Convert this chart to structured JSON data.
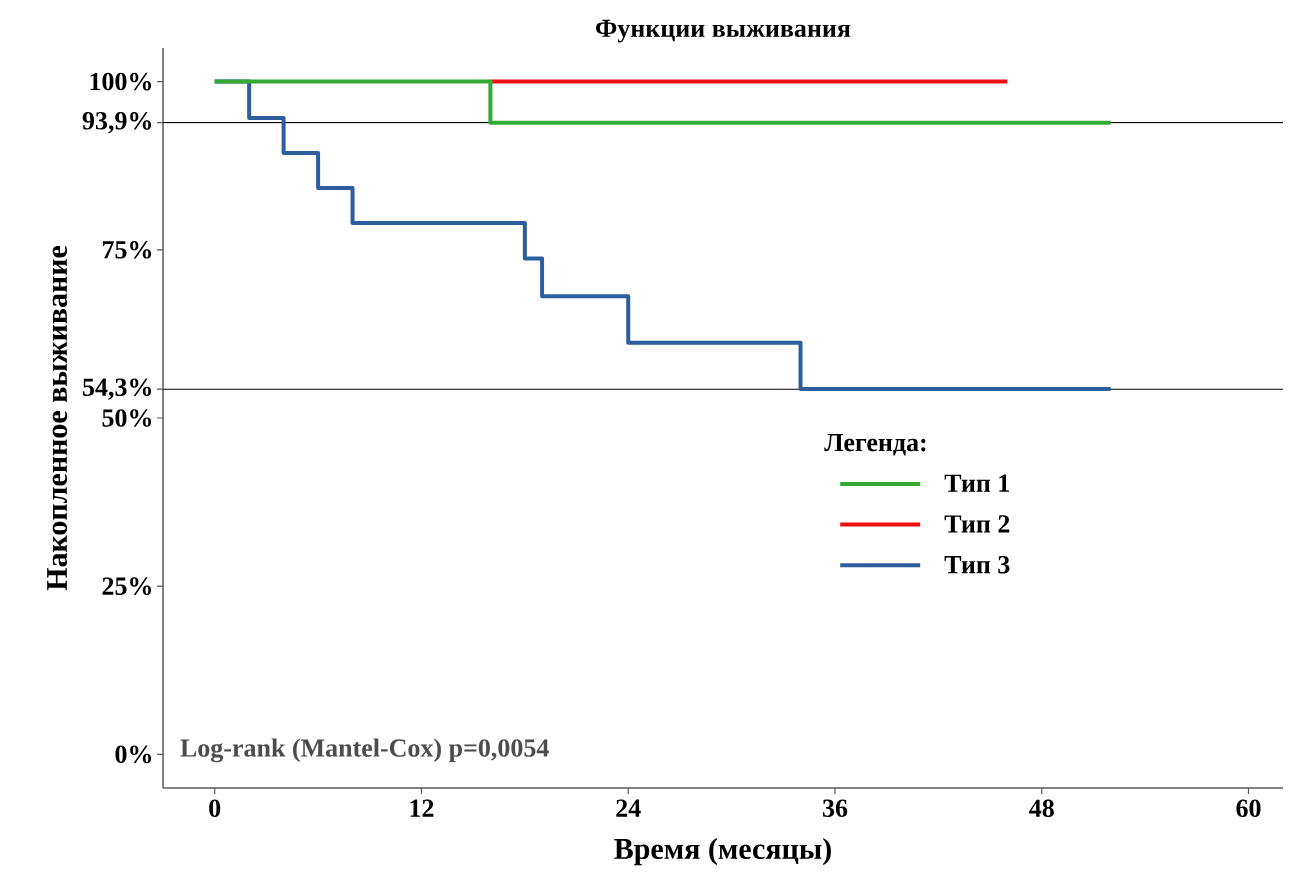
{
  "chart_data": {
    "type": "step",
    "title": "Функции выживания",
    "xlabel": "Время (месяцы)",
    "ylabel": "Накопленное выживание",
    "legend_title": "Легенда:",
    "series": [
      {
        "name": "Тип 1",
        "color": "#33aa33",
        "x": [
          0,
          16,
          52
        ],
        "values": [
          100,
          93.9,
          93.9
        ]
      },
      {
        "name": "Тип 2",
        "color": "#ee1111",
        "x": [
          16,
          46
        ],
        "values": [
          100,
          100
        ]
      },
      {
        "name": "Тип 3",
        "color": "#2e5e9e",
        "x": [
          0,
          2,
          4,
          6,
          8,
          18,
          19,
          24,
          34,
          52
        ],
        "values": [
          100,
          94.6,
          89.4,
          84.2,
          79,
          73.7,
          68.1,
          61.2,
          54.3,
          54.3
        ]
      }
    ],
    "xlim": [
      -3,
      62
    ],
    "xticks": [
      0,
      12,
      24,
      36,
      48,
      60
    ],
    "ylim": [
      -5,
      105
    ],
    "yticks": [
      {
        "value": 0,
        "label": "0%"
      },
      {
        "value": 25,
        "label": "25%"
      },
      {
        "value": 50,
        "label": "50%"
      },
      {
        "value": 54.3,
        "label": "54,3%"
      },
      {
        "value": 75,
        "label": "75%"
      },
      {
        "value": 93.9,
        "label": "93,9%"
      },
      {
        "value": 100,
        "label": "100%"
      }
    ],
    "ref_lines": [
      {
        "axis": "y",
        "value": 93.9,
        "color": "#000000"
      },
      {
        "axis": "y",
        "value": 54.3,
        "color": "#000000"
      }
    ],
    "annotations": [
      "Log-rank (Mantel-Cox) p=0,0054"
    ],
    "legend": "right"
  }
}
